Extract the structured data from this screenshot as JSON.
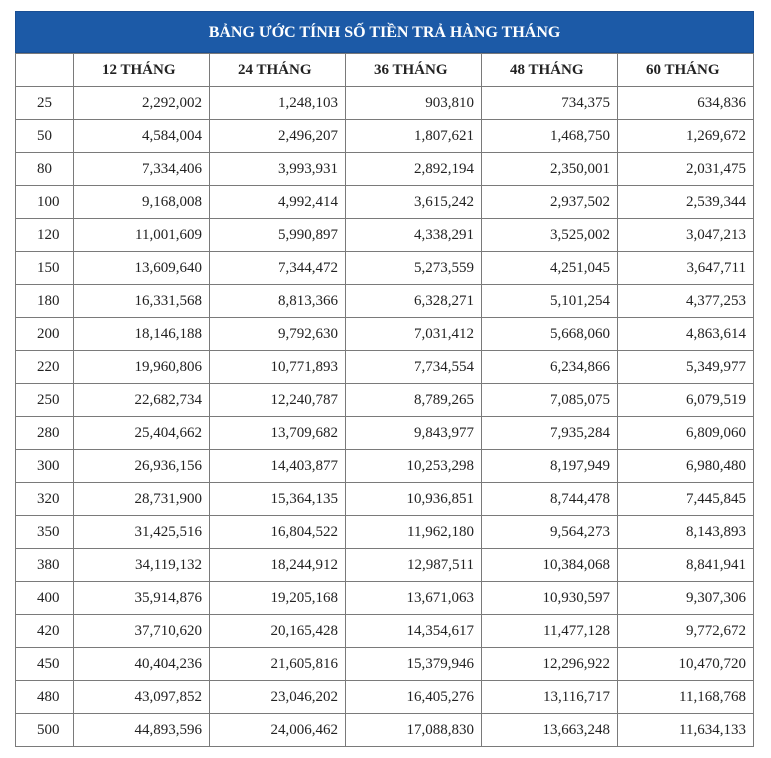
{
  "title": "BẢNG ƯỚC TÍNH SỐ TIỀN TRẢ HÀNG THÁNG",
  "headers": [
    "",
    "12 THÁNG",
    "24 THÁNG",
    "36 THÁNG",
    "48 THÁNG",
    "60 THÁNG"
  ],
  "rows": [
    [
      "25",
      "2,292,002",
      "1,248,103",
      "903,810",
      "734,375",
      "634,836"
    ],
    [
      "50",
      "4,584,004",
      "2,496,207",
      "1,807,621",
      "1,468,750",
      "1,269,672"
    ],
    [
      "80",
      "7,334,406",
      "3,993,931",
      "2,892,194",
      "2,350,001",
      "2,031,475"
    ],
    [
      "100",
      "9,168,008",
      "4,992,414",
      "3,615,242",
      "2,937,502",
      "2,539,344"
    ],
    [
      "120",
      "11,001,609",
      "5,990,897",
      "4,338,291",
      "3,525,002",
      "3,047,213"
    ],
    [
      "150",
      "13,609,640",
      "7,344,472",
      "5,273,559",
      "4,251,045",
      "3,647,711"
    ],
    [
      "180",
      "16,331,568",
      "8,813,366",
      "6,328,271",
      "5,101,254",
      "4,377,253"
    ],
    [
      "200",
      "18,146,188",
      "9,792,630",
      "7,031,412",
      "5,668,060",
      "4,863,614"
    ],
    [
      "220",
      "19,960,806",
      "10,771,893",
      "7,734,554",
      "6,234,866",
      "5,349,977"
    ],
    [
      "250",
      "22,682,734",
      "12,240,787",
      "8,789,265",
      "7,085,075",
      "6,079,519"
    ],
    [
      "280",
      "25,404,662",
      "13,709,682",
      "9,843,977",
      "7,935,284",
      "6,809,060"
    ],
    [
      "300",
      "26,936,156",
      "14,403,877",
      "10,253,298",
      "8,197,949",
      "6,980,480"
    ],
    [
      "320",
      "28,731,900",
      "15,364,135",
      "10,936,851",
      "8,744,478",
      "7,445,845"
    ],
    [
      "350",
      "31,425,516",
      "16,804,522",
      "11,962,180",
      "9,564,273",
      "8,143,893"
    ],
    [
      "380",
      "34,119,132",
      "18,244,912",
      "12,987,511",
      "10,384,068",
      "8,841,941"
    ],
    [
      "400",
      "35,914,876",
      "19,205,168",
      "13,671,063",
      "10,930,597",
      "9,307,306"
    ],
    [
      "420",
      "37,710,620",
      "20,165,428",
      "14,354,617",
      "11,477,128",
      "9,772,672"
    ],
    [
      "450",
      "40,404,236",
      "21,605,816",
      "15,379,946",
      "12,296,922",
      "10,470,720"
    ],
    [
      "480",
      "43,097,852",
      "23,046,202",
      "16,405,276",
      "13,116,717",
      "11,168,768"
    ],
    [
      "500",
      "44,893,596",
      "24,006,462",
      "17,088,830",
      "13,663,248",
      "11,634,133"
    ]
  ]
}
